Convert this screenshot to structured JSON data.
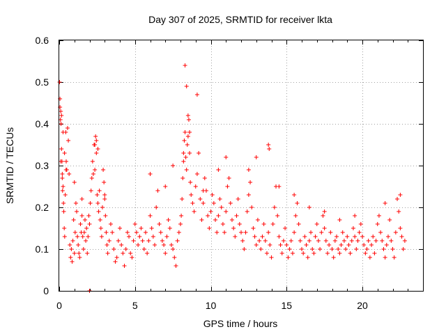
{
  "chart_data": {
    "type": "scatter",
    "title": "Day 307 of 2025, SRMTID for receiver lkta",
    "xlabel": "GPS time / hours",
    "ylabel": "SRMTID / TECUs",
    "xlim": [
      0,
      24
    ],
    "ylim": [
      0,
      0.6
    ],
    "x_ticks": [
      0,
      5,
      10,
      15,
      20
    ],
    "x_tick_labels": [
      "0",
      "5",
      "10",
      "15",
      "20"
    ],
    "y_ticks": [
      0,
      0.1,
      0.2,
      0.3,
      0.4,
      0.5,
      0.6
    ],
    "y_tick_labels": [
      "0",
      "0.1",
      "0.2",
      "0.3",
      "0.4",
      "0.5",
      "0.6"
    ],
    "grid": true,
    "marker": "+",
    "color": "#ff0000",
    "series": [
      {
        "name": "SRMTID",
        "x": [
          0.02,
          0.05,
          0.08,
          0.1,
          0.12,
          0.15,
          0.18,
          0.2,
          0.22,
          0.25,
          0.28,
          0.3,
          0.33,
          0.36,
          0.4,
          0.43,
          0.46,
          0.5,
          0.55,
          0.6,
          0.65,
          0.7,
          0.75,
          0.8,
          0.85,
          0.9,
          0.95,
          1.0,
          1.05,
          1.1,
          1.15,
          1.2,
          1.25,
          1.3,
          1.35,
          1.4,
          1.45,
          1.5,
          1.55,
          1.6,
          1.65,
          1.7,
          1.75,
          1.8,
          1.85,
          1.9,
          1.95,
          2.0,
          2.05,
          2.1,
          2.15,
          2.2,
          2.25,
          2.3,
          2.35,
          2.4,
          2.45,
          2.5,
          2.55,
          2.6,
          2.65,
          2.7,
          2.75,
          2.8,
          2.85,
          2.9,
          2.95,
          3.0,
          3.05,
          3.1,
          3.15,
          3.2,
          3.3,
          3.4,
          3.5,
          3.6,
          3.7,
          3.8,
          3.9,
          4.0,
          4.1,
          4.2,
          4.3,
          4.4,
          4.5,
          4.6,
          4.7,
          4.8,
          4.9,
          5.0,
          5.1,
          5.2,
          5.3,
          5.4,
          5.5,
          5.6,
          5.7,
          5.8,
          5.9,
          6.0,
          6.1,
          6.2,
          6.3,
          6.4,
          6.5,
          6.6,
          6.7,
          6.8,
          6.9,
          7.0,
          7.1,
          7.2,
          7.3,
          7.4,
          7.5,
          7.6,
          7.7,
          7.8,
          7.9,
          8.0,
          8.05,
          8.1,
          8.15,
          8.2,
          8.25,
          8.3,
          8.35,
          8.4,
          8.45,
          8.5,
          8.55,
          8.6,
          8.65,
          8.7,
          8.8,
          8.9,
          9.0,
          9.1,
          9.2,
          9.3,
          9.4,
          9.5,
          9.6,
          9.7,
          9.8,
          9.9,
          10.0,
          10.1,
          10.2,
          10.3,
          10.4,
          10.5,
          10.6,
          10.7,
          10.8,
          10.9,
          11.0,
          11.1,
          11.2,
          11.3,
          11.4,
          11.5,
          11.6,
          11.7,
          11.8,
          11.9,
          12.0,
          12.1,
          12.2,
          12.3,
          12.4,
          12.5,
          12.6,
          12.7,
          12.8,
          12.9,
          13.0,
          13.1,
          13.2,
          13.3,
          13.4,
          13.5,
          13.6,
          13.7,
          13.8,
          13.9,
          14.0,
          14.1,
          14.2,
          14.3,
          14.4,
          14.5,
          14.6,
          14.7,
          14.8,
          14.9,
          15.0,
          15.1,
          15.2,
          15.3,
          15.4,
          15.5,
          15.6,
          15.7,
          15.8,
          15.9,
          16.0,
          16.1,
          16.2,
          16.3,
          16.4,
          16.5,
          16.6,
          16.7,
          16.8,
          16.9,
          17.0,
          17.1,
          17.2,
          17.3,
          17.4,
          17.5,
          17.6,
          17.7,
          17.8,
          17.9,
          18.0,
          18.1,
          18.2,
          18.3,
          18.4,
          18.5,
          18.6,
          18.7,
          18.8,
          18.9,
          19.0,
          19.1,
          19.2,
          19.3,
          19.4,
          19.5,
          19.6,
          19.7,
          19.8,
          19.9,
          20.0,
          20.1,
          20.2,
          20.3,
          20.4,
          20.5,
          20.6,
          20.7,
          20.8,
          20.9,
          21.0,
          21.1,
          21.2,
          21.3,
          21.4,
          21.5,
          21.6,
          21.7,
          21.8,
          21.9,
          22.0,
          22.1,
          22.2,
          22.3,
          22.4,
          22.5,
          22.6,
          22.7,
          22.8,
          0.05,
          0.15,
          0.25,
          0.35,
          0.45,
          2.35,
          2.45,
          2.55,
          8.3,
          8.4,
          8.5,
          8.6,
          9.1,
          13.8,
          13.85,
          0.1,
          0.2,
          1.0,
          1.5,
          2.0,
          3.0,
          4.0,
          6.0,
          7.0,
          7.5,
          8.2,
          9.5,
          10.5,
          11.0,
          12.5,
          13.0,
          14.5,
          15.5,
          16.5,
          17.5,
          18.5,
          19.5,
          21.5,
          22.5
        ],
        "y": [
          0.5,
          0.46,
          0.41,
          0.43,
          0.4,
          0.34,
          0.31,
          0.27,
          0.24,
          0.25,
          0.21,
          0.19,
          0.15,
          0.13,
          0.23,
          0.38,
          0.31,
          0.29,
          0.39,
          0.36,
          0.28,
          0.11,
          0.08,
          0.1,
          0.07,
          0.12,
          0.17,
          0.09,
          0.14,
          0.21,
          0.19,
          0.13,
          0.11,
          0.09,
          0.08,
          0.16,
          0.14,
          0.18,
          0.13,
          0.1,
          0.14,
          0.17,
          0.12,
          0.15,
          0.09,
          0.13,
          0.18,
          0.16,
          0.21,
          0.24,
          0.27,
          0.31,
          0.28,
          0.35,
          0.29,
          0.37,
          0.33,
          0.23,
          0.21,
          0.19,
          0.24,
          0.17,
          0.15,
          0.13,
          0.2,
          0.29,
          0.26,
          0.22,
          0.18,
          0.14,
          0.11,
          0.09,
          0.12,
          0.16,
          0.14,
          0.1,
          0.07,
          0.08,
          0.12,
          0.15,
          0.11,
          0.09,
          0.06,
          0.1,
          0.14,
          0.13,
          0.09,
          0.08,
          0.12,
          0.16,
          0.14,
          0.11,
          0.13,
          0.15,
          0.12,
          0.1,
          0.14,
          0.09,
          0.12,
          0.18,
          0.15,
          0.13,
          0.11,
          0.2,
          0.24,
          0.16,
          0.14,
          0.12,
          0.11,
          0.09,
          0.13,
          0.17,
          0.15,
          0.11,
          0.1,
          0.08,
          0.06,
          0.12,
          0.14,
          0.16,
          0.18,
          0.22,
          0.27,
          0.31,
          0.36,
          0.38,
          0.32,
          0.29,
          0.35,
          0.37,
          0.41,
          0.33,
          0.26,
          0.23,
          0.21,
          0.19,
          0.25,
          0.28,
          0.33,
          0.22,
          0.17,
          0.21,
          0.27,
          0.24,
          0.18,
          0.15,
          0.19,
          0.23,
          0.21,
          0.17,
          0.14,
          0.18,
          0.22,
          0.2,
          0.16,
          0.14,
          0.19,
          0.25,
          0.27,
          0.21,
          0.17,
          0.15,
          0.13,
          0.18,
          0.22,
          0.16,
          0.14,
          0.12,
          0.1,
          0.14,
          0.19,
          0.23,
          0.26,
          0.2,
          0.15,
          0.13,
          0.11,
          0.17,
          0.12,
          0.1,
          0.13,
          0.16,
          0.12,
          0.09,
          0.14,
          0.11,
          0.08,
          0.16,
          0.2,
          0.25,
          0.18,
          0.13,
          0.11,
          0.09,
          0.12,
          0.15,
          0.11,
          0.08,
          0.1,
          0.12,
          0.09,
          0.14,
          0.18,
          0.21,
          0.16,
          0.12,
          0.1,
          0.09,
          0.13,
          0.11,
          0.08,
          0.12,
          0.14,
          0.1,
          0.09,
          0.13,
          0.16,
          0.12,
          0.1,
          0.14,
          0.18,
          0.15,
          0.12,
          0.09,
          0.11,
          0.14,
          0.1,
          0.08,
          0.12,
          0.13,
          0.1,
          0.09,
          0.11,
          0.14,
          0.12,
          0.1,
          0.13,
          0.11,
          0.09,
          0.12,
          0.15,
          0.13,
          0.1,
          0.12,
          0.14,
          0.16,
          0.13,
          0.11,
          0.09,
          0.1,
          0.12,
          0.08,
          0.11,
          0.13,
          0.09,
          0.12,
          0.16,
          0.18,
          0.14,
          0.12,
          0.1,
          0.08,
          0.11,
          0.13,
          0.17,
          0.12,
          0.1,
          0.08,
          0.14,
          0.22,
          0.19,
          0.15,
          0.13,
          0.1,
          0.12,
          0.44,
          0.42,
          0.38,
          0.33,
          0.29,
          0.35,
          0.36,
          0.34,
          0.54,
          0.49,
          0.42,
          0.38,
          0.47,
          0.35,
          0.34,
          0.31,
          0.28,
          0.26,
          0.22,
          0.0,
          0.23,
          0.15,
          0.28,
          0.25,
          0.3,
          0.33,
          0.24,
          0.29,
          0.32,
          0.29,
          0.32,
          0.25,
          0.23,
          0.2,
          0.19,
          0.17,
          0.18,
          0.21,
          0.23
        ]
      }
    ]
  }
}
